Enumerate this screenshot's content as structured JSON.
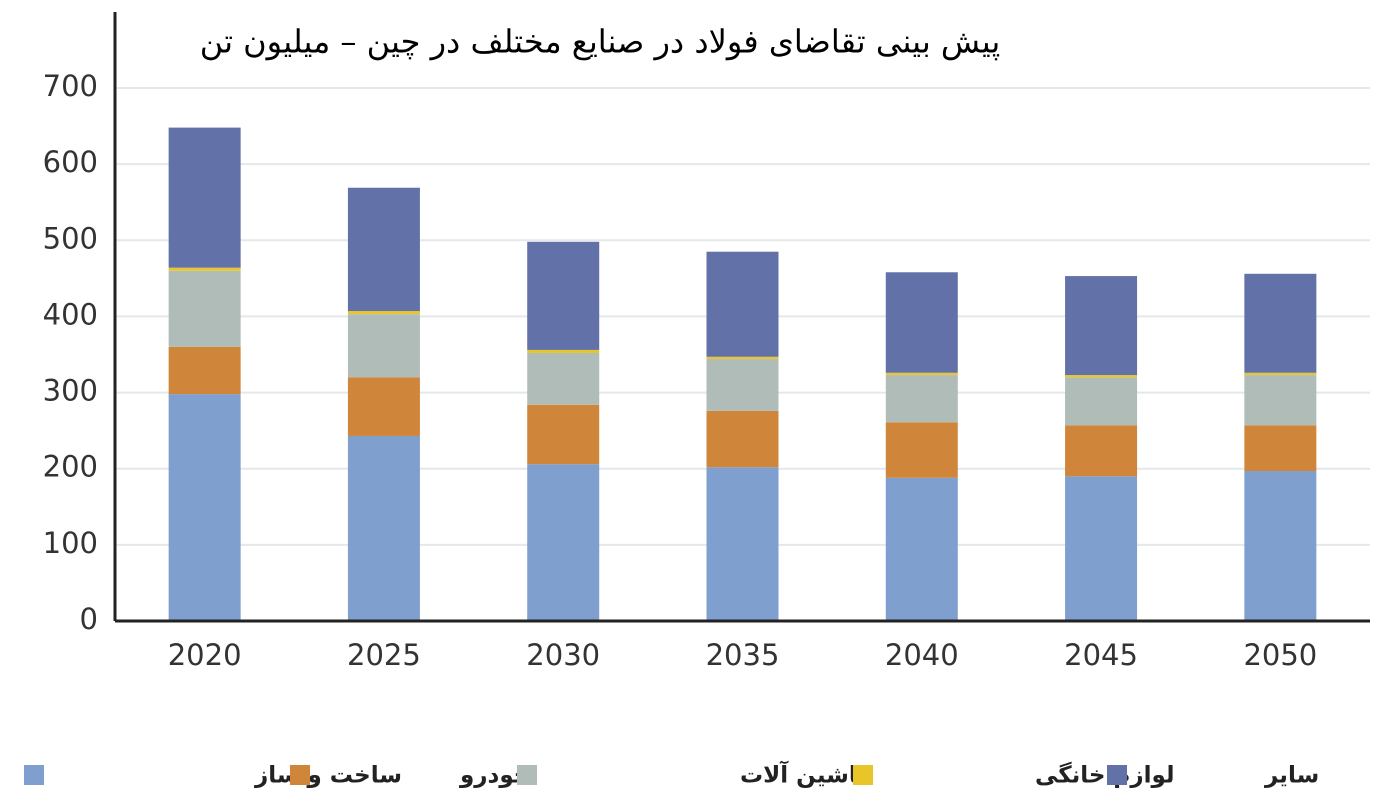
{
  "chart_data": {
    "type": "stacked_bar",
    "title": "پیش بینی تقاضای فولاد در صنایع مختلف در چین – میلیون تن",
    "categories": [
      "2020",
      "2025",
      "2030",
      "2035",
      "2040",
      "2045",
      "2050"
    ],
    "series": [
      {
        "name": "ساخت و ساز",
        "color": "#7f9fcf",
        "values": [
          298,
          243,
          206,
          202,
          188,
          190,
          197
        ]
      },
      {
        "name": "خودرو",
        "color": "#d0863a",
        "values": [
          62,
          77,
          78,
          74,
          73,
          67,
          60
        ]
      },
      {
        "name": "ماشین آلات",
        "color": "#b0bcb8",
        "values": [
          100,
          83,
          68,
          68,
          62,
          63,
          66
        ]
      },
      {
        "name": "لوازم خانگی",
        "color": "#e8c62a",
        "values": [
          4,
          4,
          4,
          3,
          3,
          3,
          3
        ]
      },
      {
        "name": "سایر",
        "color": "#6272a8",
        "values": [
          184,
          162,
          142,
          138,
          132,
          130,
          130
        ]
      }
    ],
    "ylim": [
      0,
      700
    ],
    "yticks": [
      0,
      100,
      200,
      300,
      400,
      500,
      600,
      700
    ],
    "grid": true
  }
}
